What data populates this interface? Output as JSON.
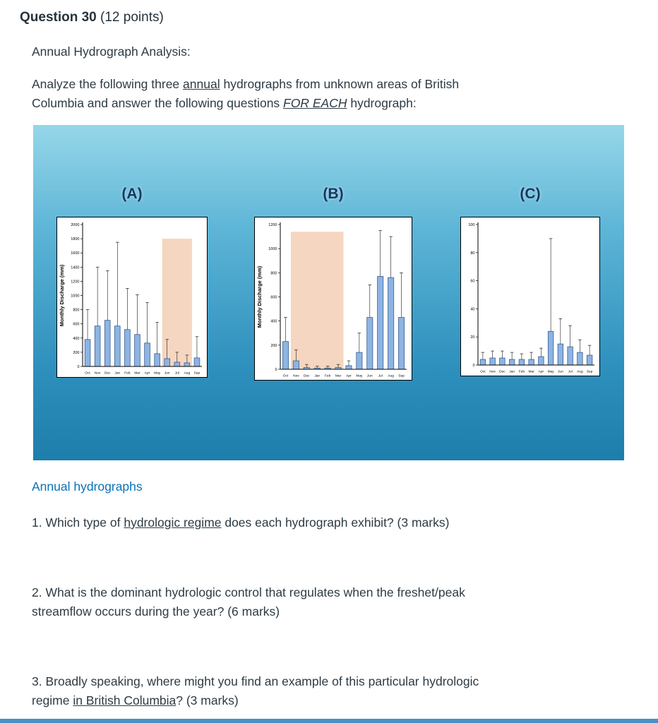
{
  "page": {
    "title": "Question 30",
    "points": "(12 points)",
    "subtitle": "Annual Hydrograph Analysis:",
    "intro": {
      "part1": "Analyze the following three ",
      "underline1": "annual",
      "part2": " hydrographs from unknown areas of British\nColumbia and answer the following questions ",
      "underline2": "FOR EACH",
      "part3": " hydrograph:"
    },
    "figure_caption": "Annual hydrographs",
    "questions": {
      "q1": {
        "part1": "1. Which type of ",
        "underline": "hydrologic regime",
        "part2": " does each hydrograph exhibit? (3 marks)"
      },
      "q2": {
        "text": "2. What is the dominant hydrologic control that regulates when the freshet/peak\nstreamflow occurs during the year? (6 marks)"
      },
      "q3": {
        "part1": "3. Broadly speaking, where might you find an example of this particular hydrologic\nregime ",
        "underline": "in British Columbia",
        "part2": "? (3 marks)"
      }
    }
  },
  "chart_data": [
    {
      "type": "bar",
      "label": "(A)",
      "title": "",
      "xlabel": "",
      "ylabel": "Monthly Discharge (mm)",
      "ylim": [
        0,
        2000
      ],
      "ytick_step": 200,
      "grid": false,
      "legend": false,
      "error_bars": true,
      "categories": [
        "Oct",
        "Nov",
        "Dec",
        "Jan",
        "Feb",
        "Mar",
        "Apr",
        "May",
        "Jun",
        "Jul",
        "Aug",
        "Sep"
      ],
      "values": [
        380,
        570,
        650,
        570,
        520,
        450,
        330,
        180,
        110,
        60,
        50,
        120
      ],
      "errors_top": [
        800,
        1400,
        1350,
        1750,
        1100,
        1010,
        900,
        620,
        380,
        200,
        160,
        420
      ],
      "highlight": {
        "start_index": 8,
        "end_index": 10,
        "ymax": 1800
      }
    },
    {
      "type": "bar",
      "label": "(B)",
      "title": "",
      "xlabel": "",
      "ylabel": "Monthly Discharge (mm)",
      "ylim": [
        0,
        1200
      ],
      "ytick_step": 200,
      "grid": false,
      "legend": false,
      "error_bars": true,
      "categories": [
        "Oct",
        "Nov",
        "Dec",
        "Jan",
        "Feb",
        "Mar",
        "Apr",
        "May",
        "Jun",
        "Jul",
        "Aug",
        "Sep"
      ],
      "values": [
        230,
        70,
        15,
        10,
        10,
        15,
        30,
        140,
        430,
        770,
        760,
        430
      ],
      "errors_top": [
        430,
        160,
        40,
        25,
        25,
        40,
        70,
        300,
        700,
        1150,
        1100,
        800
      ],
      "highlight": {
        "start_index": 1,
        "end_index": 5,
        "ymax": 1140
      }
    },
    {
      "type": "bar",
      "label": "(C)",
      "title": "",
      "xlabel": "",
      "ylabel": "",
      "ylim": [
        0,
        100
      ],
      "ytick_step": 20,
      "grid": false,
      "legend": false,
      "error_bars": true,
      "categories": [
        "Oct",
        "Nov",
        "Dec",
        "Jan",
        "Feb",
        "Mar",
        "Apr",
        "May",
        "Jun",
        "Jul",
        "Aug",
        "Sep"
      ],
      "values": [
        4,
        5,
        5,
        4,
        4,
        4,
        6,
        24,
        15,
        13,
        9,
        7
      ],
      "errors_top": [
        9,
        10,
        10,
        9,
        8,
        9,
        12,
        90,
        33,
        28,
        18,
        14
      ],
      "highlight": null
    }
  ],
  "colors": {
    "text": "#2d3b45",
    "link": "#0b72b8",
    "chart_label": "#17375e",
    "bar_fill": "#8eb4e3",
    "bar_stroke": "#376092",
    "error_bar": "#1a1a1a",
    "highlight": "#f5d6c0",
    "gradient_top": "#96d7e9",
    "gradient_bottom": "#1e7dab",
    "bottom_rule": "#4a90c8"
  }
}
